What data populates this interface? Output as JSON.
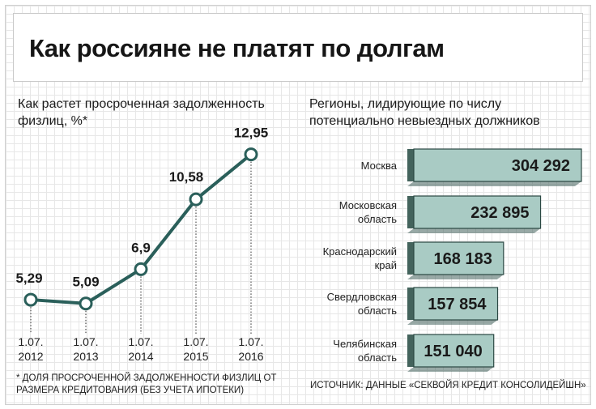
{
  "title": "Как россияне не платят по долгам",
  "chart_data": [
    {
      "type": "line",
      "subtitle": "Как растет просроченная задолженность физлиц, %*",
      "categories": [
        "1.07.\n2012",
        "1.07.\n2013",
        "1.07.\n2014",
        "1.07.\n2015",
        "1.07.\n2016"
      ],
      "values": [
        5.29,
        5.09,
        6.9,
        10.58,
        12.95
      ],
      "value_labels": [
        "5,29",
        "5,09",
        "6,9",
        "10,58",
        "12,95"
      ],
      "ylim": [
        3.5,
        14
      ],
      "grid": false,
      "colors": {
        "line": "#2a5f5a",
        "marker_fill": "#ffffff"
      },
      "footnote": "* Доля просроченной задолженности физлиц от размера кредитования (без учета ипотеки)"
    },
    {
      "type": "bar",
      "orientation": "horizontal",
      "subtitle": "Регионы, лидирующие по числу потенциально невыездных должников",
      "categories": [
        "Москва",
        "Московская область",
        "Краснодарский край",
        "Свердловская область",
        "Челябинская область"
      ],
      "values": [
        304292,
        232895,
        168183,
        157854,
        151040
      ],
      "value_labels": [
        "304 292",
        "232 895",
        "168 183",
        "157 854",
        "151 040"
      ],
      "colors": {
        "bar": "#a9cbc4",
        "bar_side": "#43635c",
        "bar_border": "#2b4843"
      },
      "source": "Источник: данные «Секвойя Кредит Консолидейшн»"
    }
  ]
}
